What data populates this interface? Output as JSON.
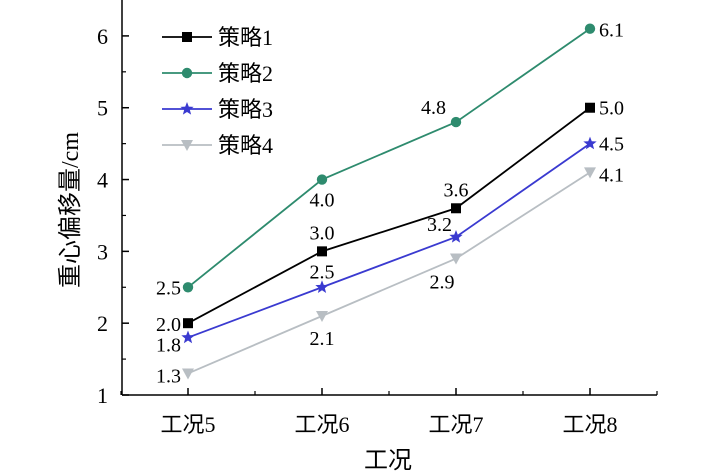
{
  "chart_data": {
    "type": "line",
    "title": "",
    "xlabel": "工况",
    "ylabel": "重心偏移量/cm",
    "categories": [
      "工况5",
      "工况6",
      "工况7",
      "工况8"
    ],
    "ylim": [
      1,
      6.5
    ],
    "yticks": [
      1,
      2,
      3,
      4,
      5,
      6
    ],
    "grid": false,
    "legend_position": "top-left",
    "series": [
      {
        "name": "策略1",
        "values": [
          2.0,
          3.0,
          3.6,
          5.0
        ],
        "labels": [
          "2.0",
          "3.0",
          "3.6",
          "5.0"
        ],
        "color": "#000000",
        "marker": "square"
      },
      {
        "name": "策略2",
        "values": [
          2.5,
          4.0,
          4.8,
          6.1
        ],
        "labels": [
          "2.5",
          "4.0",
          "4.8",
          "6.1"
        ],
        "color": "#2e8b6e",
        "marker": "circle"
      },
      {
        "name": "策略3",
        "values": [
          1.8,
          2.5,
          3.2,
          4.5
        ],
        "labels": [
          "1.8",
          "2.5",
          "3.2",
          "4.5"
        ],
        "color": "#3a3ad0",
        "marker": "star"
      },
      {
        "name": "策略4",
        "values": [
          1.3,
          2.1,
          2.9,
          4.1
        ],
        "labels": [
          "1.3",
          "2.1",
          "2.9",
          "4.1"
        ],
        "color": "#b8bec3",
        "marker": "triangle-down"
      }
    ]
  }
}
